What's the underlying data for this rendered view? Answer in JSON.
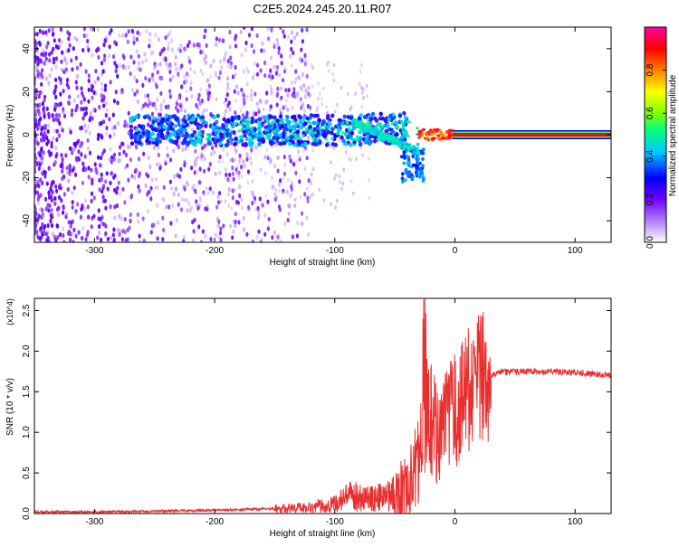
{
  "page_title": "C2E5.2024.245.20.11.R07",
  "chart_data": [
    {
      "type": "heatmap",
      "title": "C2E5.2024.245.20.11.R07",
      "xlabel": "Height of straight line (km)",
      "ylabel": "Frequency (Hz)",
      "xlim": [
        -350,
        130
      ],
      "ylim": [
        -50,
        50
      ],
      "x_ticks": [
        -300,
        -200,
        -100,
        0,
        100
      ],
      "y_ticks": [
        -40,
        -20,
        0,
        20,
        40
      ],
      "colorbar": {
        "label": "Normalized spectral amplitude",
        "range": [
          0,
          1
        ],
        "ticks": [
          "0.0",
          "0.2",
          "0.4",
          "0.6",
          "0.8"
        ],
        "colors": [
          "#ffffff",
          "#b07cff",
          "#7000ff",
          "#0000ff",
          "#00c8ff",
          "#00ff80",
          "#80ff00",
          "#ffff00",
          "#ff8000",
          "#ff0000",
          "#ff00a0"
        ]
      },
      "features": [
        {
          "name": "noise",
          "x_range": [
            -350,
            -150
          ],
          "f_range": [
            -50,
            50
          ],
          "amplitude": 0.05
        },
        {
          "name": "signal-band",
          "x_range": [
            -270,
            -40
          ],
          "f_center": 2,
          "f_halfwidth": 7,
          "amplitude": 0.25
        },
        {
          "name": "converging-doppler",
          "x_range": [
            -80,
            -25
          ],
          "f_start": 6,
          "f_end": -20,
          "amplitude": 0.4
        },
        {
          "name": "carrier-line",
          "x_range": [
            0,
            130
          ],
          "f_center": 0,
          "amplitude": 1.0
        }
      ]
    },
    {
      "type": "line",
      "xlabel": "Height of straight line (km)",
      "ylabel": "SNR (10 * v/v)",
      "ylabel_multiplier": "(x10^4)",
      "xlim": [
        -350,
        130
      ],
      "ylim": [
        0,
        2.65
      ],
      "x_ticks": [
        -300,
        -200,
        -100,
        0,
        100
      ],
      "y_ticks": [
        "0.0",
        "0.5",
        "1.0",
        "1.5",
        "2.0",
        "2.5"
      ],
      "color": "#e83030",
      "x": [
        -350,
        -300,
        -250,
        -200,
        -150,
        -120,
        -100,
        -90,
        -80,
        -70,
        -60,
        -50,
        -40,
        -35,
        -30,
        -28,
        -25,
        -20,
        -15,
        -10,
        -5,
        0,
        5,
        10,
        20,
        30,
        40,
        60,
        80,
        100,
        115,
        130
      ],
      "y": [
        0.02,
        0.02,
        0.03,
        0.04,
        0.06,
        0.08,
        0.12,
        0.2,
        0.22,
        0.18,
        0.2,
        0.25,
        0.3,
        0.45,
        0.7,
        1.1,
        1.3,
        1.2,
        1.0,
        1.0,
        1.15,
        1.25,
        1.35,
        1.5,
        1.62,
        1.72,
        1.74,
        1.75,
        1.75,
        1.74,
        1.72,
        1.7
      ],
      "spikes": [
        {
          "x": -25,
          "y": 2.65
        },
        {
          "x": -20,
          "y": 1.8
        }
      ]
    }
  ]
}
